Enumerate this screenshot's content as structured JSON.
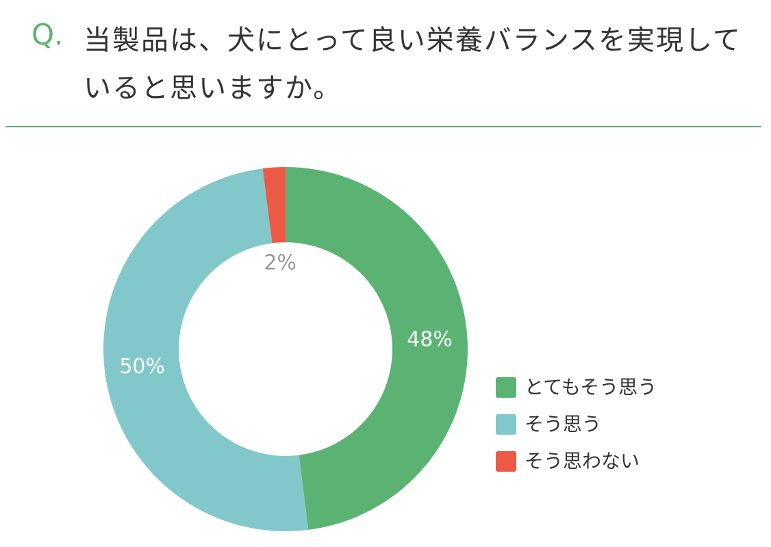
{
  "chart_data": {
    "type": "donut",
    "question_label": "Q.",
    "title": "当製品は、犬にとって良い栄養バランスを実現していると思いますか。",
    "categories": [
      "とてもそう思う",
      "そう思う",
      "そう思わない"
    ],
    "values": [
      48,
      50,
      2
    ],
    "value_labels": [
      "48%",
      "50%",
      "2%"
    ],
    "colors": [
      "#5bb373",
      "#82c8ca",
      "#ec5a45"
    ],
    "legend": "right"
  }
}
